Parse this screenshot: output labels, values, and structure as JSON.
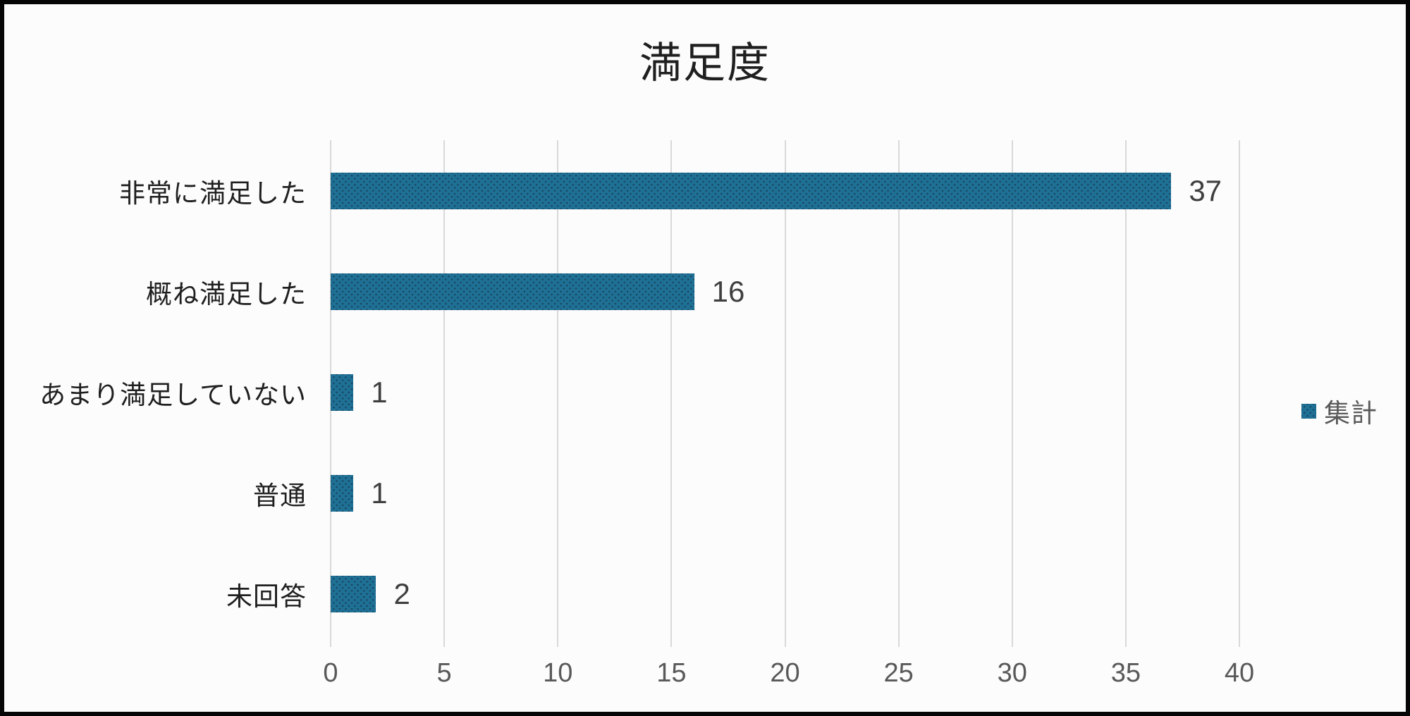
{
  "chart_data": {
    "type": "bar",
    "orientation": "horizontal",
    "title": "満足度",
    "categories": [
      "非常に満足した",
      "概ね満足した",
      "あまり満足していない",
      "普通",
      "未回答"
    ],
    "values": [
      37,
      16,
      1,
      1,
      2
    ],
    "data_labels": [
      "37",
      "16",
      "1",
      "1",
      "2"
    ],
    "legend": [
      "集計"
    ],
    "legend_position": "right",
    "xlim": [
      0,
      40
    ],
    "xticks": [
      0,
      5,
      10,
      15,
      20,
      25,
      30,
      35,
      40
    ],
    "grid": true,
    "bar_color": "#1f7095",
    "bar_pattern_dot_color": "#17435c",
    "gridline_color": "#d9d9d9",
    "title_color": "#1f1f1f",
    "category_label_color": "#1f1f1f",
    "value_label_color": "#3f3f3f",
    "tick_label_color": "#595959",
    "background_color": "#fcfcfc",
    "frame_border_color": "#060606"
  }
}
